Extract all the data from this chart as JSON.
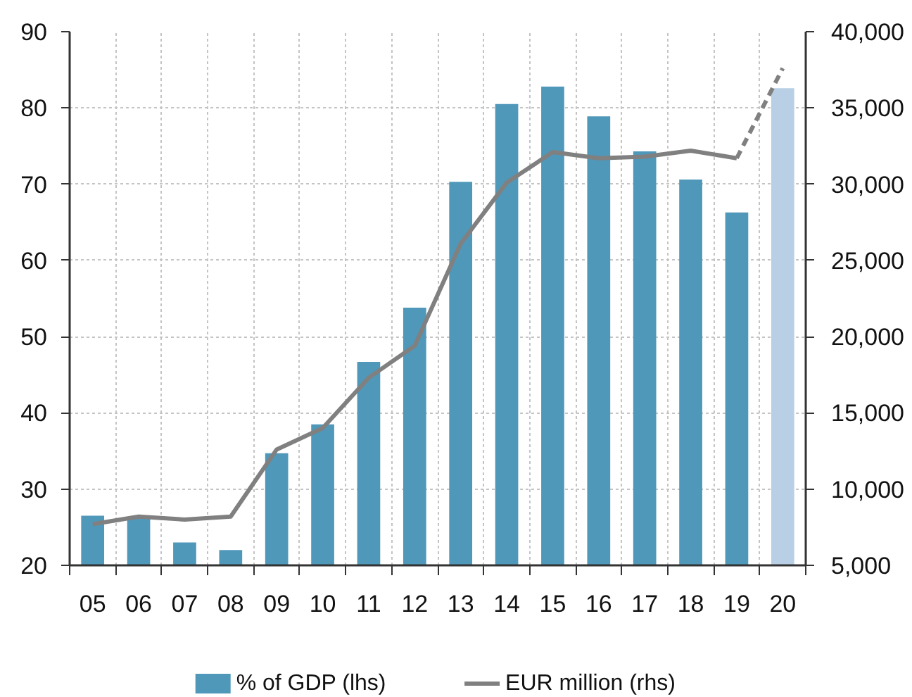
{
  "chart_data": {
    "type": "bar",
    "categories": [
      "05",
      "06",
      "07",
      "08",
      "09",
      "10",
      "11",
      "12",
      "13",
      "14",
      "15",
      "16",
      "17",
      "18",
      "19",
      "20"
    ],
    "series": [
      {
        "name": "% of GDP (lhs)",
        "colors": [
          "#4f98b9",
          "#4f98b9",
          "#4f98b9",
          "#4f98b9",
          "#4f98b9",
          "#4f98b9",
          "#4f98b9",
          "#4f98b9",
          "#4f98b9",
          "#4f98b9",
          "#4f98b9",
          "#4f98b9",
          "#4f98b9",
          "#4f98b9",
          "#4f98b9",
          "#b8cfe5"
        ],
        "values": [
          26.5,
          26.3,
          23.0,
          22.0,
          34.7,
          38.5,
          46.7,
          53.8,
          70.3,
          80.5,
          82.8,
          78.9,
          74.3,
          70.6,
          66.3,
          82.6
        ]
      },
      {
        "name": "EUR million (rhs)",
        "type": "line",
        "axis": "y2",
        "color": "#808080",
        "line_style": "solid",
        "values": [
          7700,
          8200,
          8000,
          8200,
          12600,
          14000,
          17300,
          19400,
          26100,
          30100,
          32100,
          31700,
          31800,
          32200,
          31700,
          null
        ]
      },
      {
        "type": "line",
        "axis": "y2",
        "color": "#808080",
        "line_style": "dashed",
        "values": [
          null,
          null,
          null,
          null,
          null,
          null,
          null,
          null,
          null,
          null,
          null,
          null,
          null,
          null,
          31700,
          37600
        ]
      }
    ],
    "ylim": [
      20,
      90
    ],
    "yticks": [
      20,
      30,
      40,
      50,
      60,
      70,
      80,
      90
    ],
    "y2lim": [
      5000,
      40000
    ],
    "y2ticks": [
      {
        "value": 5000,
        "label": "5,000"
      },
      {
        "value": 10000,
        "label": "10,000"
      },
      {
        "value": 15000,
        "label": "15,000"
      },
      {
        "value": 20000,
        "label": "20,000"
      },
      {
        "value": 25000,
        "label": "25,000"
      },
      {
        "value": 30000,
        "label": "30,000"
      },
      {
        "value": 35000,
        "label": "35,000"
      },
      {
        "value": 40000,
        "label": "40,000"
      }
    ],
    "grid": true,
    "legend": "bottom"
  }
}
